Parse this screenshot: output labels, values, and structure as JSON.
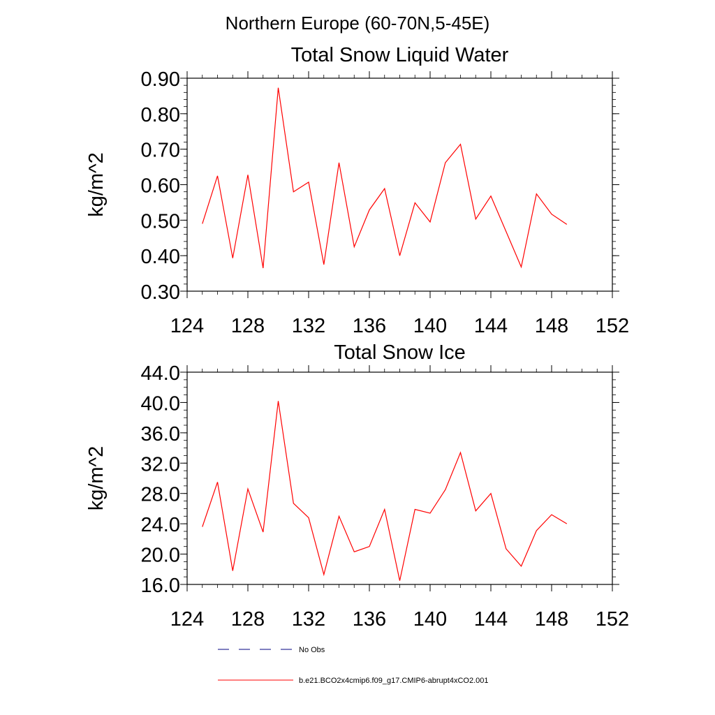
{
  "page": {
    "main_title": "Northern Europe (60-70N,5-45E)"
  },
  "chart_data": [
    {
      "type": "line",
      "title": "Total Snow Liquid Water",
      "xlabel": "",
      "ylabel": "kg/m^2",
      "xlim": [
        124,
        152
      ],
      "ylim": [
        0.3,
        0.9
      ],
      "x_ticks": [
        124,
        128,
        132,
        136,
        140,
        144,
        148,
        152
      ],
      "x_tick_labels": [
        "124",
        "128",
        "132",
        "136",
        "140",
        "144",
        "148",
        "152"
      ],
      "y_ticks": [
        0.3,
        0.4,
        0.5,
        0.6,
        0.7,
        0.8,
        0.9
      ],
      "y_tick_labels": [
        "0.30",
        "0.40",
        "0.50",
        "0.60",
        "0.70",
        "0.80",
        "0.90"
      ],
      "y_minor_step": 0.02,
      "x_minor_step": 1,
      "series": [
        {
          "name": "b.e21.BCO2x4cmip6.f09_g17.CMIP6-abrupt4xCO2.001",
          "color": "#ff0000",
          "x": [
            125,
            126,
            127,
            128,
            129,
            130,
            131,
            132,
            133,
            134,
            135,
            136,
            137,
            138,
            139,
            140,
            141,
            142,
            143,
            144,
            145,
            146,
            147,
            148,
            149
          ],
          "values": [
            0.49,
            0.625,
            0.393,
            0.628,
            0.365,
            0.873,
            0.58,
            0.607,
            0.375,
            0.662,
            0.425,
            0.529,
            0.589,
            0.4,
            0.549,
            0.495,
            0.662,
            0.714,
            0.503,
            0.568,
            0.468,
            0.368,
            0.574,
            0.517,
            0.488
          ]
        }
      ]
    },
    {
      "type": "line",
      "title": "Total Snow Ice",
      "xlabel": "",
      "ylabel": "kg/m^2",
      "xlim": [
        124,
        152
      ],
      "ylim": [
        16.0,
        44.0
      ],
      "x_ticks": [
        124,
        128,
        132,
        136,
        140,
        144,
        148,
        152
      ],
      "x_tick_labels": [
        "124",
        "128",
        "132",
        "136",
        "140",
        "144",
        "148",
        "152"
      ],
      "y_ticks": [
        16.0,
        20.0,
        24.0,
        28.0,
        32.0,
        36.0,
        40.0,
        44.0
      ],
      "y_tick_labels": [
        "16.0",
        "20.0",
        "24.0",
        "28.0",
        "32.0",
        "36.0",
        "40.0",
        "44.0"
      ],
      "y_minor_step": 1,
      "x_minor_step": 1,
      "series": [
        {
          "name": "b.e21.BCO2x4cmip6.f09_g17.CMIP6-abrupt4xCO2.001",
          "color": "#ff0000",
          "x": [
            125,
            126,
            127,
            128,
            129,
            130,
            131,
            132,
            133,
            134,
            135,
            136,
            137,
            138,
            139,
            140,
            141,
            142,
            143,
            144,
            145,
            146,
            147,
            148,
            149
          ],
          "values": [
            23.6,
            29.5,
            17.8,
            28.6,
            22.9,
            40.2,
            26.7,
            24.8,
            17.3,
            25.0,
            20.3,
            21.0,
            25.9,
            16.5,
            25.9,
            25.4,
            28.5,
            33.4,
            25.7,
            28.0,
            20.7,
            18.4,
            23.1,
            25.2,
            24.0
          ]
        }
      ]
    }
  ],
  "legend": {
    "placement": "bottom",
    "items": [
      {
        "label": "No Obs",
        "color": "#000080",
        "style": "dashed"
      },
      {
        "label": "b.e21.BCO2x4cmip6.f09_g17.CMIP6-abrupt4xCO2.001",
        "color": "#ff0000",
        "style": "solid"
      }
    ]
  }
}
